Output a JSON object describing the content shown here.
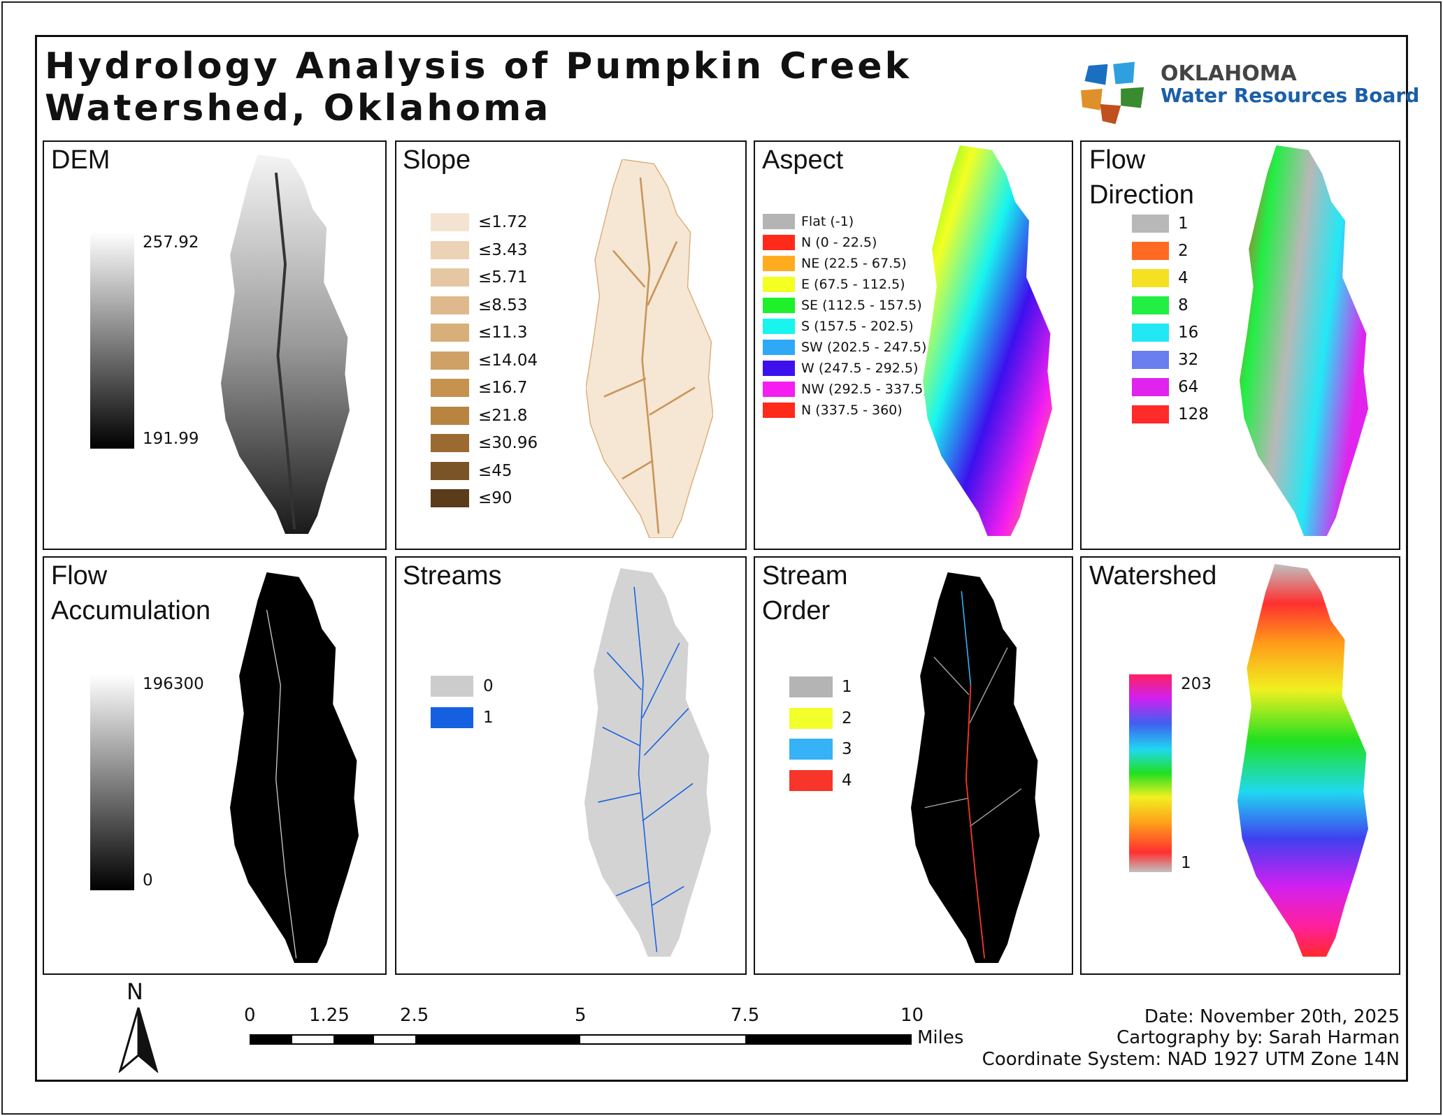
{
  "title": {
    "line1": "Hydrology Analysis of Pumpkin Creek",
    "line2": "Watershed, Oklahoma"
  },
  "logo": {
    "line1": "OKLAHOMA",
    "line2": "Water Resources Board"
  },
  "panels": {
    "dem": {
      "title": "DEM",
      "max": "257.92",
      "min": "191.99"
    },
    "slope": {
      "title": "Slope",
      "classes": [
        {
          "label": "≤1.72",
          "color": "#f5e3d2"
        },
        {
          "label": "≤3.43",
          "color": "#ecd3b6"
        },
        {
          "label": "≤5.71",
          "color": "#e6c7a3"
        },
        {
          "label": "≤8.53",
          "color": "#dfb98d"
        },
        {
          "label": "≤11.3",
          "color": "#d8ae7a"
        },
        {
          "label": "≤14.04",
          "color": "#d0a166"
        },
        {
          "label": "≤16.7",
          "color": "#c5924f"
        },
        {
          "label": "≤21.8",
          "color": "#b8843f"
        },
        {
          "label": "≤30.96",
          "color": "#9a6a30"
        },
        {
          "label": "≤45",
          "color": "#7a5426"
        },
        {
          "label": "≤90",
          "color": "#5a3c1a"
        }
      ]
    },
    "aspect": {
      "title": "Aspect",
      "classes": [
        {
          "label": "Flat (-1)",
          "color": "#b4b4b4"
        },
        {
          "label": "N (0 - 22.5)",
          "color": "#ff2a1a"
        },
        {
          "label": "NE (22.5 - 67.5)",
          "color": "#ffad1f"
        },
        {
          "label": "E (67.5 - 112.5)",
          "color": "#f4ff22"
        },
        {
          "label": "SE (112.5 - 157.5)",
          "color": "#1ef02a"
        },
        {
          "label": "S (157.5 - 202.5)",
          "color": "#18f5ef"
        },
        {
          "label": "SW (202.5 - 247.5)",
          "color": "#2ea8f7"
        },
        {
          "label": "W (247.5 - 292.5)",
          "color": "#3d10ee"
        },
        {
          "label": "NW (292.5 - 337.5)",
          "color": "#f51ef0"
        },
        {
          "label": "N (337.5 - 360)",
          "color": "#ff2a1a"
        }
      ]
    },
    "flow_direction": {
      "title_line1": "Flow",
      "title_line2": "Direction",
      "classes": [
        {
          "label": "1",
          "color": "#b8b8b8"
        },
        {
          "label": "2",
          "color": "#ff6a22"
        },
        {
          "label": "4",
          "color": "#f5e022"
        },
        {
          "label": "8",
          "color": "#22ee44"
        },
        {
          "label": "16",
          "color": "#22e8f5"
        },
        {
          "label": "32",
          "color": "#6a7ef0"
        },
        {
          "label": "64",
          "color": "#e024ee"
        },
        {
          "label": "128",
          "color": "#ff2a2a"
        }
      ]
    },
    "flow_accumulation": {
      "title_line1": "Flow",
      "title_line2": "Accumulation",
      "max": "196300",
      "min": "0"
    },
    "streams": {
      "title": "Streams",
      "classes": [
        {
          "label": "0",
          "color": "#cccccc"
        },
        {
          "label": "1",
          "color": "#1560e0"
        }
      ]
    },
    "stream_order": {
      "title_line1": "Stream",
      "title_line2": "Order",
      "classes": [
        {
          "label": "1",
          "color": "#b4b4b4"
        },
        {
          "label": "2",
          "color": "#f2ff2a"
        },
        {
          "label": "3",
          "color": "#36b2f7"
        },
        {
          "label": "4",
          "color": "#f7352a"
        }
      ]
    },
    "watershed": {
      "title": "Watershed",
      "max": "203",
      "min": "1"
    }
  },
  "north_arrow": {
    "label": "N"
  },
  "scale_bar": {
    "ticks": [
      "0",
      "1.25",
      "2.5",
      "5",
      "7.5",
      "10"
    ],
    "unit": "Miles"
  },
  "credits": {
    "date": "Date: November 20th, 2025",
    "author": "Cartography by: Sarah Harman",
    "crs": "Coordinate System: NAD 1927 UTM Zone 14N"
  }
}
